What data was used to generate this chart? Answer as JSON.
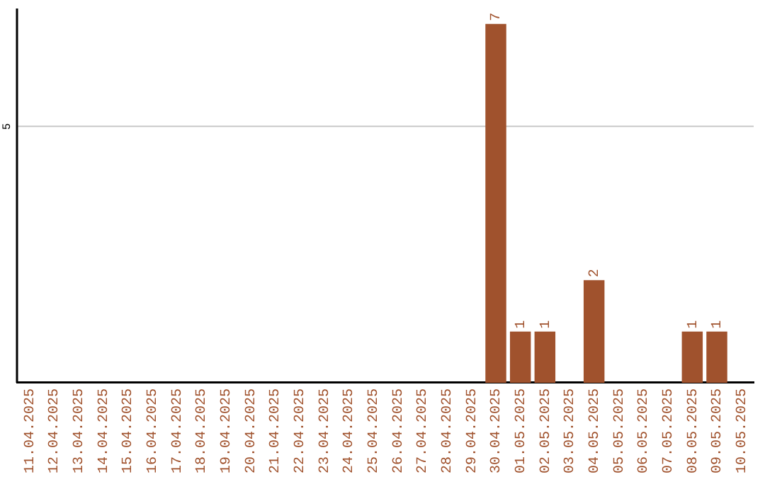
{
  "chart_data": {
    "type": "bar",
    "categories": [
      "11.04.2025",
      "12.04.2025",
      "13.04.2025",
      "14.04.2025",
      "15.04.2025",
      "16.04.2025",
      "17.04.2025",
      "18.04.2025",
      "19.04.2025",
      "20.04.2025",
      "21.04.2025",
      "22.04.2025",
      "23.04.2025",
      "24.04.2025",
      "25.04.2025",
      "26.04.2025",
      "27.04.2025",
      "28.04.2025",
      "29.04.2025",
      "30.04.2025",
      "01.05.2025",
      "02.05.2025",
      "03.05.2025",
      "04.05.2025",
      "05.05.2025",
      "06.05.2025",
      "07.05.2025",
      "08.05.2025",
      "09.05.2025",
      "10.05.2025"
    ],
    "values": [
      null,
      null,
      null,
      null,
      null,
      null,
      null,
      null,
      null,
      null,
      null,
      null,
      null,
      null,
      null,
      null,
      null,
      null,
      null,
      7,
      1,
      1,
      null,
      2,
      null,
      null,
      null,
      1,
      1,
      null
    ],
    "value_labels": [
      null,
      null,
      null,
      null,
      null,
      null,
      null,
      null,
      null,
      null,
      null,
      null,
      null,
      null,
      null,
      null,
      null,
      null,
      null,
      "7",
      "1",
      "1",
      null,
      "2",
      null,
      null,
      null,
      "1",
      "1",
      null
    ],
    "color": "#a0522d",
    "ylim": [
      0,
      7.3
    ],
    "ref_lines": [
      {
        "axis": "y",
        "value": 5,
        "label": "5",
        "color": "#c8c8c8"
      }
    ],
    "legend": false
  }
}
